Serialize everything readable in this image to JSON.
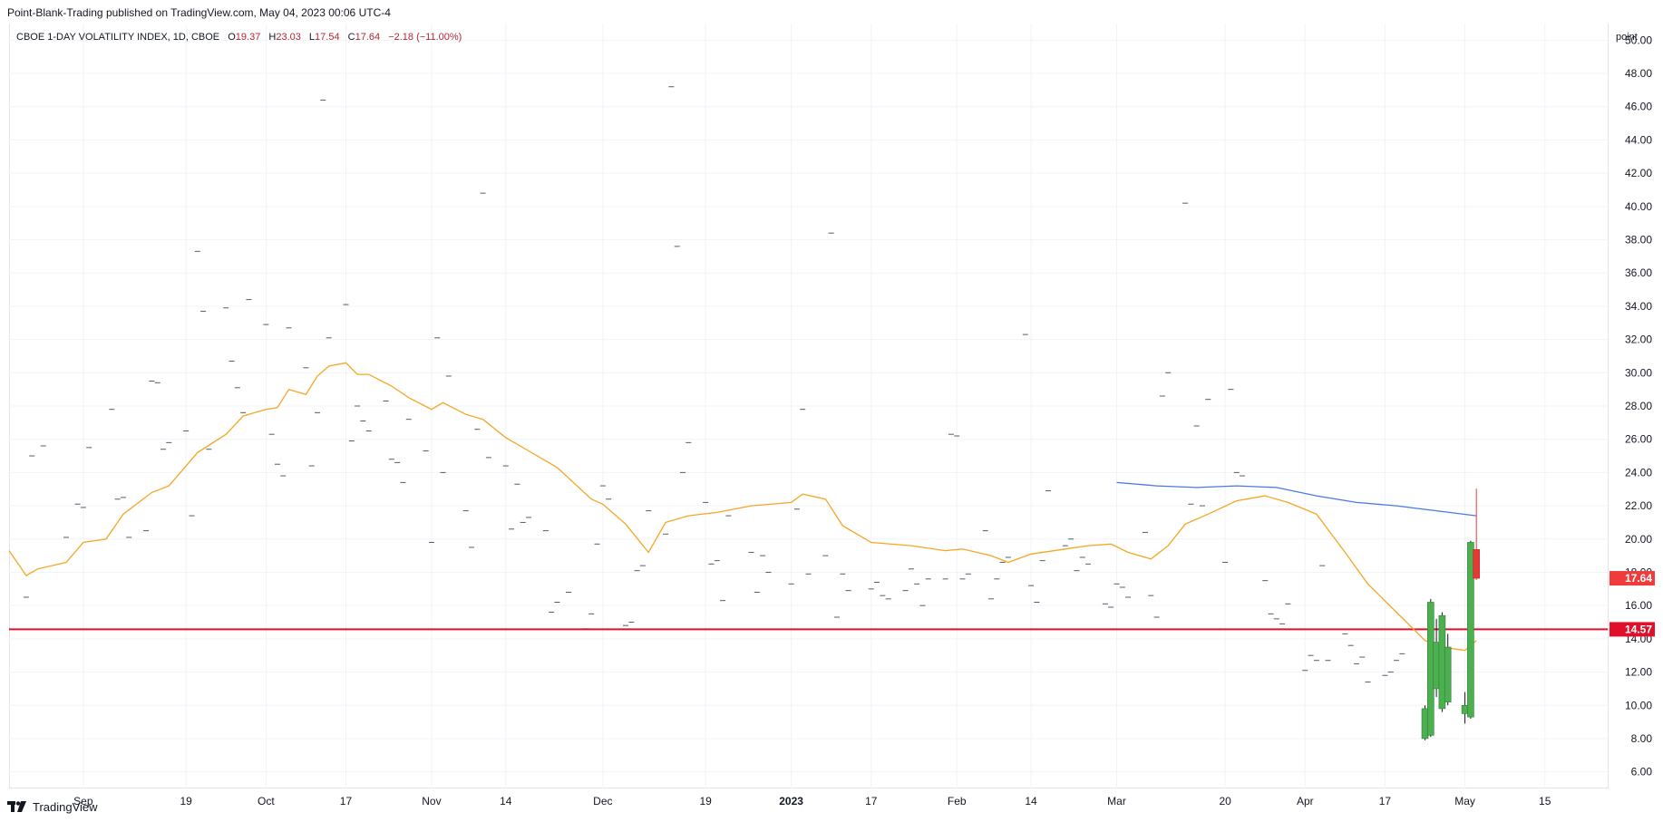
{
  "header": {
    "publisher": "Point-Blank-Trading published on TradingView.com, May 04, 2023 00:06 UTC-4"
  },
  "legend": {
    "symbol": "CBOE 1-DAY VOLATILITY INDEX, 1D, CBOE",
    "open_label": "O",
    "open": "19.37",
    "high_label": "H",
    "high": "23.03",
    "low_label": "L",
    "low": "17.54",
    "close_label": "C",
    "close": "17.64",
    "change": "−2.18 (−11.00%)"
  },
  "axis": {
    "unit": "point"
  },
  "footer": {
    "brand": "TradingView"
  },
  "colors": {
    "up_candle": "#4caf50",
    "down_candle": "#e53935",
    "sma_short": "#f5a623",
    "sma_long": "#4a78e8",
    "level_line": "#e0102a",
    "grid": "#f0f3fa"
  },
  "chart_data": {
    "type": "candlestick",
    "y_range": [
      5,
      51
    ],
    "y_ticks": [
      "6.00",
      "8.00",
      "10.00",
      "12.00",
      "14.00",
      "16.00",
      "18.00",
      "20.00",
      "22.00",
      "24.00",
      "26.00",
      "28.00",
      "30.00",
      "32.00",
      "34.00",
      "36.00",
      "38.00",
      "40.00",
      "42.00",
      "44.00",
      "46.00",
      "48.00",
      "50.00"
    ],
    "x_ticks": [
      {
        "date": "2022-09-01",
        "label": "Sep"
      },
      {
        "date": "2022-09-19",
        "label": "19"
      },
      {
        "date": "2022-10-03",
        "label": "Oct"
      },
      {
        "date": "2022-10-17",
        "label": "17"
      },
      {
        "date": "2022-11-01",
        "label": "Nov"
      },
      {
        "date": "2022-11-14",
        "label": "14"
      },
      {
        "date": "2022-12-01",
        "label": "Dec"
      },
      {
        "date": "2022-12-19",
        "label": "19"
      },
      {
        "date": "2023-01-03",
        "label": "2023",
        "bold": true
      },
      {
        "date": "2023-01-17",
        "label": "17"
      },
      {
        "date": "2023-02-01",
        "label": "Feb"
      },
      {
        "date": "2023-02-14",
        "label": "14"
      },
      {
        "date": "2023-03-01",
        "label": "Mar"
      },
      {
        "date": "2023-03-20",
        "label": "20"
      },
      {
        "date": "2023-04-03",
        "label": "Apr"
      },
      {
        "date": "2023-04-17",
        "label": "17"
      },
      {
        "date": "2023-05-01",
        "label": "May"
      },
      {
        "date": "2023-05-15",
        "label": "15"
      }
    ],
    "x_range": [
      "2022-08-19",
      "2023-05-26"
    ],
    "horizontal_level": {
      "value": 14.57,
      "label": "14.57"
    },
    "last_price": {
      "value": 17.64,
      "label": "17.64"
    },
    "candles": [
      {
        "date": "2023-04-24",
        "open": 8.0,
        "high": 10.0,
        "low": 7.9,
        "close": 9.8
      },
      {
        "date": "2023-04-25",
        "open": 8.2,
        "high": 16.4,
        "low": 8.1,
        "close": 16.2
      },
      {
        "date": "2023-04-26",
        "open": 11.0,
        "high": 15.2,
        "low": 10.5,
        "close": 13.8
      },
      {
        "date": "2023-04-27",
        "open": 9.8,
        "high": 15.6,
        "low": 9.6,
        "close": 15.4
      },
      {
        "date": "2023-04-28",
        "open": 10.2,
        "high": 14.3,
        "low": 10.0,
        "close": 13.5
      },
      {
        "date": "2023-05-01",
        "open": 9.5,
        "high": 10.8,
        "low": 8.9,
        "close": 10.0
      },
      {
        "date": "2023-05-02",
        "open": 9.3,
        "high": 19.9,
        "low": 9.2,
        "close": 19.8
      },
      {
        "date": "2023-05-03",
        "open": 19.37,
        "high": 23.03,
        "low": 17.54,
        "close": 17.64
      }
    ],
    "sma_short": [
      [
        "2022-08-19",
        19.3
      ],
      [
        "2022-08-22",
        17.8
      ],
      [
        "2022-08-24",
        18.2
      ],
      [
        "2022-08-29",
        18.6
      ],
      [
        "2022-09-01",
        19.8
      ],
      [
        "2022-09-05",
        20.0
      ],
      [
        "2022-09-08",
        21.5
      ],
      [
        "2022-09-13",
        22.8
      ],
      [
        "2022-09-16",
        23.2
      ],
      [
        "2022-09-21",
        25.2
      ],
      [
        "2022-09-26",
        26.3
      ],
      [
        "2022-09-29",
        27.4
      ],
      [
        "2022-10-03",
        27.8
      ],
      [
        "2022-10-05",
        27.9
      ],
      [
        "2022-10-07",
        29.0
      ],
      [
        "2022-10-10",
        28.7
      ],
      [
        "2022-10-12",
        29.8
      ],
      [
        "2022-10-14",
        30.4
      ],
      [
        "2022-10-17",
        30.6
      ],
      [
        "2022-10-19",
        29.9
      ],
      [
        "2022-10-21",
        29.9
      ],
      [
        "2022-10-25",
        29.2
      ],
      [
        "2022-10-28",
        28.5
      ],
      [
        "2022-11-01",
        27.8
      ],
      [
        "2022-11-03",
        28.2
      ],
      [
        "2022-11-07",
        27.5
      ],
      [
        "2022-11-10",
        27.2
      ],
      [
        "2022-11-14",
        26.1
      ],
      [
        "2022-11-18",
        25.3
      ],
      [
        "2022-11-23",
        24.3
      ],
      [
        "2022-11-29",
        22.4
      ],
      [
        "2022-12-01",
        22.1
      ],
      [
        "2022-12-05",
        20.9
      ],
      [
        "2022-12-09",
        19.2
      ],
      [
        "2022-12-12",
        21.0
      ],
      [
        "2022-12-16",
        21.4
      ],
      [
        "2022-12-21",
        21.6
      ],
      [
        "2022-12-27",
        22.0
      ],
      [
        "2023-01-03",
        22.2
      ],
      [
        "2023-01-05",
        22.7
      ],
      [
        "2023-01-09",
        22.4
      ],
      [
        "2023-01-12",
        20.8
      ],
      [
        "2023-01-17",
        19.8
      ],
      [
        "2023-01-24",
        19.6
      ],
      [
        "2023-01-30",
        19.3
      ],
      [
        "2023-02-02",
        19.4
      ],
      [
        "2023-02-07",
        19.0
      ],
      [
        "2023-02-10",
        18.6
      ],
      [
        "2023-02-14",
        19.1
      ],
      [
        "2023-02-20",
        19.4
      ],
      [
        "2023-02-24",
        19.6
      ],
      [
        "2023-02-28",
        19.7
      ],
      [
        "2023-03-03",
        19.2
      ],
      [
        "2023-03-07",
        18.8
      ],
      [
        "2023-03-10",
        19.6
      ],
      [
        "2023-03-13",
        20.9
      ],
      [
        "2023-03-17",
        21.5
      ],
      [
        "2023-03-22",
        22.3
      ],
      [
        "2023-03-27",
        22.6
      ],
      [
        "2023-03-31",
        22.2
      ],
      [
        "2023-04-05",
        21.5
      ],
      [
        "2023-04-10",
        19.2
      ],
      [
        "2023-04-14",
        17.3
      ],
      [
        "2023-04-19",
        15.6
      ],
      [
        "2023-04-24",
        13.9
      ],
      [
        "2023-04-27",
        13.5
      ],
      [
        "2023-05-01",
        13.3
      ],
      [
        "2023-05-03",
        13.9
      ]
    ],
    "sma_long": [
      [
        "2023-03-01",
        23.4
      ],
      [
        "2023-03-08",
        23.2
      ],
      [
        "2023-03-15",
        23.1
      ],
      [
        "2023-03-22",
        23.2
      ],
      [
        "2023-03-29",
        23.1
      ],
      [
        "2023-04-05",
        22.6
      ],
      [
        "2023-04-12",
        22.2
      ],
      [
        "2023-04-19",
        22.0
      ],
      [
        "2023-04-26",
        21.7
      ],
      [
        "2023-05-03",
        21.4
      ]
    ],
    "marks": [
      [
        "2022-08-22",
        16.5
      ],
      [
        "2022-08-23",
        25.0
      ],
      [
        "2022-08-25",
        25.6
      ],
      [
        "2022-08-29",
        20.1
      ],
      [
        "2022-08-31",
        22.1
      ],
      [
        "2022-09-01",
        21.9
      ],
      [
        "2022-09-02",
        25.5
      ],
      [
        "2022-09-06",
        27.8
      ],
      [
        "2022-09-07",
        22.4
      ],
      [
        "2022-09-08",
        22.5
      ],
      [
        "2022-09-09",
        20.1
      ],
      [
        "2022-09-12",
        20.5
      ],
      [
        "2022-09-13",
        29.5
      ],
      [
        "2022-09-14",
        29.4
      ],
      [
        "2022-09-15",
        25.4
      ],
      [
        "2022-09-16",
        25.8
      ],
      [
        "2022-09-19",
        26.5
      ],
      [
        "2022-09-20",
        21.4
      ],
      [
        "2022-09-21",
        37.3
      ],
      [
        "2022-09-22",
        33.7
      ],
      [
        "2022-09-23",
        25.4
      ],
      [
        "2022-09-26",
        33.9
      ],
      [
        "2022-09-27",
        30.7
      ],
      [
        "2022-09-28",
        29.1
      ],
      [
        "2022-09-29",
        27.6
      ],
      [
        "2022-09-30",
        34.4
      ],
      [
        "2022-10-03",
        32.9
      ],
      [
        "2022-10-04",
        26.3
      ],
      [
        "2022-10-05",
        24.5
      ],
      [
        "2022-10-06",
        23.8
      ],
      [
        "2022-10-07",
        32.7
      ],
      [
        "2022-10-10",
        30.3
      ],
      [
        "2022-10-11",
        24.4
      ],
      [
        "2022-10-12",
        27.6
      ],
      [
        "2022-10-13",
        46.4
      ],
      [
        "2022-10-14",
        32.1
      ],
      [
        "2022-10-17",
        34.1
      ],
      [
        "2022-10-18",
        25.9
      ],
      [
        "2022-10-19",
        28.0
      ],
      [
        "2022-10-20",
        27.1
      ],
      [
        "2022-10-21",
        26.5
      ],
      [
        "2022-10-24",
        28.3
      ],
      [
        "2022-10-25",
        24.8
      ],
      [
        "2022-10-26",
        24.6
      ],
      [
        "2022-10-27",
        23.4
      ],
      [
        "2022-10-28",
        27.2
      ],
      [
        "2022-10-31",
        25.3
      ],
      [
        "2022-11-01",
        19.8
      ],
      [
        "2022-11-02",
        32.1
      ],
      [
        "2022-11-03",
        24.0
      ],
      [
        "2022-11-04",
        29.8
      ],
      [
        "2022-11-07",
        21.7
      ],
      [
        "2022-11-08",
        19.5
      ],
      [
        "2022-11-09",
        26.6
      ],
      [
        "2022-11-10",
        40.8
      ],
      [
        "2022-11-11",
        24.9
      ],
      [
        "2022-11-14",
        24.4
      ],
      [
        "2022-11-15",
        20.6
      ],
      [
        "2022-11-16",
        23.3
      ],
      [
        "2022-11-17",
        21.0
      ],
      [
        "2022-11-18",
        21.3
      ],
      [
        "2022-11-21",
        20.5
      ],
      [
        "2022-11-22",
        15.6
      ],
      [
        "2022-11-23",
        16.2
      ],
      [
        "2022-11-25",
        16.8
      ],
      [
        "2022-11-28",
        14.6
      ],
      [
        "2022-11-29",
        15.5
      ],
      [
        "2022-11-30",
        19.7
      ],
      [
        "2022-12-01",
        23.2
      ],
      [
        "2022-12-02",
        22.4
      ],
      [
        "2022-12-05",
        14.8
      ],
      [
        "2022-12-06",
        15.0
      ],
      [
        "2022-12-07",
        18.1
      ],
      [
        "2022-12-08",
        18.4
      ],
      [
        "2022-12-09",
        21.7
      ],
      [
        "2022-12-12",
        20.3
      ],
      [
        "2022-12-13",
        47.2
      ],
      [
        "2022-12-14",
        37.6
      ],
      [
        "2022-12-15",
        24.0
      ],
      [
        "2022-12-16",
        25.8
      ],
      [
        "2022-12-19",
        22.2
      ],
      [
        "2022-12-20",
        18.5
      ],
      [
        "2022-12-21",
        18.7
      ],
      [
        "2022-12-22",
        16.3
      ],
      [
        "2022-12-23",
        21.4
      ],
      [
        "2022-12-27",
        19.2
      ],
      [
        "2022-12-28",
        16.8
      ],
      [
        "2022-12-29",
        19.0
      ],
      [
        "2022-12-30",
        18.0
      ],
      [
        "2023-01-03",
        17.3
      ],
      [
        "2023-01-04",
        21.8
      ],
      [
        "2023-01-05",
        27.8
      ],
      [
        "2023-01-06",
        17.9
      ],
      [
        "2023-01-09",
        19.0
      ],
      [
        "2023-01-10",
        38.4
      ],
      [
        "2023-01-11",
        15.3
      ],
      [
        "2023-01-12",
        17.9
      ],
      [
        "2023-01-13",
        16.9
      ],
      [
        "2023-01-17",
        17.0
      ],
      [
        "2023-01-18",
        17.4
      ],
      [
        "2023-01-19",
        16.6
      ],
      [
        "2023-01-20",
        16.4
      ],
      [
        "2023-01-23",
        16.9
      ],
      [
        "2023-01-24",
        18.2
      ],
      [
        "2023-01-25",
        17.3
      ],
      [
        "2023-01-26",
        16.0
      ],
      [
        "2023-01-27",
        17.6
      ],
      [
        "2023-01-30",
        17.6
      ],
      [
        "2023-01-31",
        26.3
      ],
      [
        "2023-02-01",
        26.2
      ],
      [
        "2023-02-02",
        17.6
      ],
      [
        "2023-02-03",
        17.9
      ],
      [
        "2023-02-06",
        20.5
      ],
      [
        "2023-02-07",
        16.4
      ],
      [
        "2023-02-08",
        17.6
      ],
      [
        "2023-02-09",
        18.6
      ],
      [
        "2023-02-10",
        18.9
      ],
      [
        "2023-02-13",
        32.3
      ],
      [
        "2023-02-14",
        17.2
      ],
      [
        "2023-02-15",
        16.2
      ],
      [
        "2023-02-16",
        18.7
      ],
      [
        "2023-02-17",
        22.9
      ],
      [
        "2023-02-20",
        19.6
      ],
      [
        "2023-02-21",
        20.0
      ],
      [
        "2023-02-22",
        18.1
      ],
      [
        "2023-02-23",
        18.9
      ],
      [
        "2023-02-24",
        18.5
      ],
      [
        "2023-02-27",
        16.1
      ],
      [
        "2023-02-28",
        15.9
      ],
      [
        "2023-03-01",
        17.3
      ],
      [
        "2023-03-02",
        17.1
      ],
      [
        "2023-03-03",
        16.5
      ],
      [
        "2023-03-06",
        20.4
      ],
      [
        "2023-03-07",
        16.6
      ],
      [
        "2023-03-08",
        15.3
      ],
      [
        "2023-03-09",
        28.6
      ],
      [
        "2023-03-10",
        30.0
      ],
      [
        "2023-03-13",
        40.2
      ],
      [
        "2023-03-14",
        22.1
      ],
      [
        "2023-03-15",
        26.8
      ],
      [
        "2023-03-16",
        22.0
      ],
      [
        "2023-03-17",
        28.4
      ],
      [
        "2023-03-20",
        18.6
      ],
      [
        "2023-03-21",
        29.0
      ],
      [
        "2023-03-22",
        24.0
      ],
      [
        "2023-03-23",
        23.8
      ],
      [
        "2023-03-27",
        17.5
      ],
      [
        "2023-03-28",
        15.5
      ],
      [
        "2023-03-29",
        15.2
      ],
      [
        "2023-03-30",
        14.9
      ],
      [
        "2023-03-31",
        16.1
      ],
      [
        "2023-04-03",
        12.1
      ],
      [
        "2023-04-04",
        13.0
      ],
      [
        "2023-04-05",
        12.7
      ],
      [
        "2023-04-06",
        18.4
      ],
      [
        "2023-04-07",
        12.7
      ],
      [
        "2023-04-10",
        14.3
      ],
      [
        "2023-04-11",
        13.6
      ],
      [
        "2023-04-12",
        12.5
      ],
      [
        "2023-04-13",
        12.9
      ],
      [
        "2023-04-14",
        11.4
      ],
      [
        "2023-04-17",
        11.8
      ],
      [
        "2023-04-18",
        12.0
      ],
      [
        "2023-04-19",
        12.7
      ],
      [
        "2023-04-20",
        13.1
      ]
    ]
  }
}
